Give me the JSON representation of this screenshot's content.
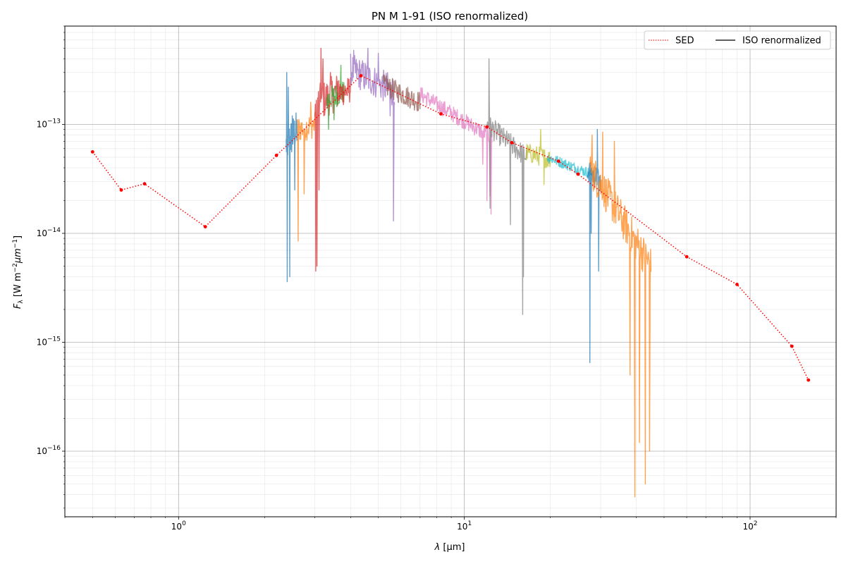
{
  "chart_data": {
    "type": "line",
    "title": "PN M 1-91 (ISO renormalized)",
    "xlabel_var": "λ",
    "xlabel_unit": "[μm]",
    "ylabel_var": "F",
    "ylabel_sub": "λ",
    "ylabel_unit_a": "[W m",
    "ylabel_unit_b": "μm",
    "ylabel_unit_c": "]",
    "ylabel_exp": "−2",
    "ylabel_exp2": "−1",
    "xscale": "log",
    "yscale": "log",
    "xlim": [
      0.4,
      200
    ],
    "ylim": [
      2.5e-17,
      8e-13
    ],
    "grid": true,
    "legend_position": "upper-right",
    "x_ticks": [
      {
        "value": 1,
        "base": "10",
        "exp": "0"
      },
      {
        "value": 10,
        "base": "10",
        "exp": "1"
      },
      {
        "value": 100,
        "base": "10",
        "exp": "2"
      }
    ],
    "y_ticks": [
      {
        "value": 1e-13,
        "base": "10",
        "exp": "−13"
      },
      {
        "value": 1e-14,
        "base": "10",
        "exp": "−14"
      },
      {
        "value": 1e-15,
        "base": "10",
        "exp": "−15"
      },
      {
        "value": 1e-16,
        "base": "10",
        "exp": "−16"
      }
    ],
    "legend": [
      {
        "label": "SED",
        "color": "#ff0000",
        "style": "dotted"
      },
      {
        "label": "ISO renormalized",
        "color": "#000000",
        "style": "solid"
      }
    ],
    "sed": {
      "name": "SED",
      "color": "#ff0000",
      "points": [
        [
          0.5,
          5.6e-14
        ],
        [
          0.63,
          2.5e-14
        ],
        [
          0.76,
          2.85e-14
        ],
        [
          1.24,
          1.15e-14
        ],
        [
          2.2,
          5.2e-14
        ],
        [
          4.35,
          2.8e-13
        ],
        [
          8.28,
          1.25e-13
        ],
        [
          12.0,
          9.5e-14
        ],
        [
          14.65,
          6.8e-14
        ],
        [
          21.34,
          4.6e-14
        ],
        [
          25.0,
          3.5e-14
        ],
        [
          60.0,
          6.1e-15
        ],
        [
          90.0,
          3.4e-15
        ],
        [
          140.0,
          9.2e-16
        ],
        [
          160.0,
          4.5e-16
        ]
      ]
    },
    "segments": [
      {
        "color": "#1f77b4",
        "x": [
          2.38,
          2.6
        ],
        "y": [
          6.5e-14,
          9e-14
        ],
        "noise": 0.35,
        "spikes": [
          [
            2.39,
            3e-13
          ],
          [
            2.4,
            3.6e-15
          ],
          [
            2.42,
            2.2e-13
          ],
          [
            2.45,
            4e-15
          ],
          [
            2.5,
            1.2e-13
          ],
          [
            2.55,
            2.5e-14
          ]
        ]
      },
      {
        "color": "#ff7f0e",
        "x": [
          2.6,
          3.0
        ],
        "y": [
          9e-14,
          1e-13
        ],
        "noise": 0.25,
        "spikes": [
          [
            2.62,
            8.5e-15
          ],
          [
            2.75,
            2.3e-14
          ],
          [
            2.9,
            1.6e-13
          ]
        ]
      },
      {
        "color": "#d62728",
        "x": [
          3.0,
          3.6
        ],
        "y": [
          1.5e-13,
          2e-13
        ],
        "noise": 0.35,
        "spikes": [
          [
            3.02,
            4.5e-15
          ],
          [
            3.05,
            5e-15
          ],
          [
            3.1,
            2.5e-14
          ],
          [
            3.2,
            4e-13
          ],
          [
            3.15,
            5e-13
          ],
          [
            3.4,
            3e-13
          ]
        ]
      },
      {
        "color": "#2ca02c",
        "x": [
          3.3,
          3.8
        ],
        "y": [
          1.7e-13,
          2e-13
        ],
        "noise": 0.22,
        "spikes": [
          [
            3.35,
            9e-14
          ],
          [
            3.7,
            3.5e-13
          ],
          [
            3.5,
            1.1e-13
          ]
        ]
      },
      {
        "color": "#d62728",
        "x": [
          3.6,
          4.0
        ],
        "y": [
          1.9e-13,
          2.1e-13
        ],
        "noise": 0.25,
        "spikes": []
      },
      {
        "color": "#9467bd",
        "x": [
          4.0,
          5.7
        ],
        "y": [
          3.2e-13,
          2e-13
        ],
        "noise": 0.3,
        "spikes": [
          [
            4.1,
            4.8e-13
          ],
          [
            4.6,
            5e-13
          ],
          [
            5.0,
            4.5e-13
          ],
          [
            5.5,
            1.2e-13
          ],
          [
            5.65,
            1.3e-14
          ],
          [
            5.68,
            1.6e-13
          ]
        ]
      },
      {
        "color": "#8c564b",
        "x": [
          5.2,
          7.0
        ],
        "y": [
          2.3e-13,
          1.6e-13
        ],
        "noise": 0.2,
        "spikes": [
          [
            5.4,
            2.6e-13
          ]
        ]
      },
      {
        "color": "#e377c2",
        "x": [
          7.0,
          12.5
        ],
        "y": [
          1.9e-13,
          7.5e-14
        ],
        "noise": 0.15,
        "spikes": [
          [
            11.6,
            4.3e-14
          ],
          [
            12.0,
            2e-14
          ],
          [
            12.3,
            2.2e-14
          ],
          [
            12.4,
            1.5e-14
          ]
        ]
      },
      {
        "color": "#7f7f7f",
        "x": [
          12.0,
          16.5
        ],
        "y": [
          1e-13,
          5e-14
        ],
        "noise": 0.2,
        "spikes": [
          [
            12.2,
            4e-13
          ],
          [
            12.3,
            1.7e-14
          ],
          [
            14.5,
            1.2e-14
          ],
          [
            16.0,
            1.8e-15
          ],
          [
            16.1,
            4e-15
          ]
        ]
      },
      {
        "color": "#bcbd22",
        "x": [
          16.5,
          20.0
        ],
        "y": [
          5.5e-14,
          4.8e-14
        ],
        "noise": 0.18,
        "spikes": [
          [
            18.5,
            9e-14
          ],
          [
            19.0,
            2.8e-14
          ]
        ]
      },
      {
        "color": "#17becf",
        "x": [
          19.5,
          28.0
        ],
        "y": [
          5e-14,
          3.5e-14
        ],
        "noise": 0.1,
        "spikes": []
      },
      {
        "color": "#1f77b4",
        "x": [
          27.0,
          30.0
        ],
        "y": [
          3.8e-14,
          3e-14
        ],
        "noise": 0.2,
        "spikes": [
          [
            27.5,
            6.5e-16
          ],
          [
            27.8,
            1e-14
          ],
          [
            29.2,
            9e-14
          ],
          [
            29.5,
            4.5e-15
          ]
        ]
      },
      {
        "color": "#ff7f0e",
        "x": [
          27.5,
          45.0
        ],
        "y": [
          4e-14,
          5e-15
        ],
        "noise": 0.35,
        "spikes": [
          [
            28.0,
            8e-14
          ],
          [
            30.5,
            8.5e-14
          ],
          [
            33.5,
            7e-14
          ],
          [
            38.0,
            5e-16
          ],
          [
            39.5,
            3.8e-17
          ],
          [
            41.0,
            1.2e-16
          ],
          [
            43.0,
            5e-17
          ],
          [
            44.5,
            1e-16
          ]
        ]
      }
    ]
  }
}
